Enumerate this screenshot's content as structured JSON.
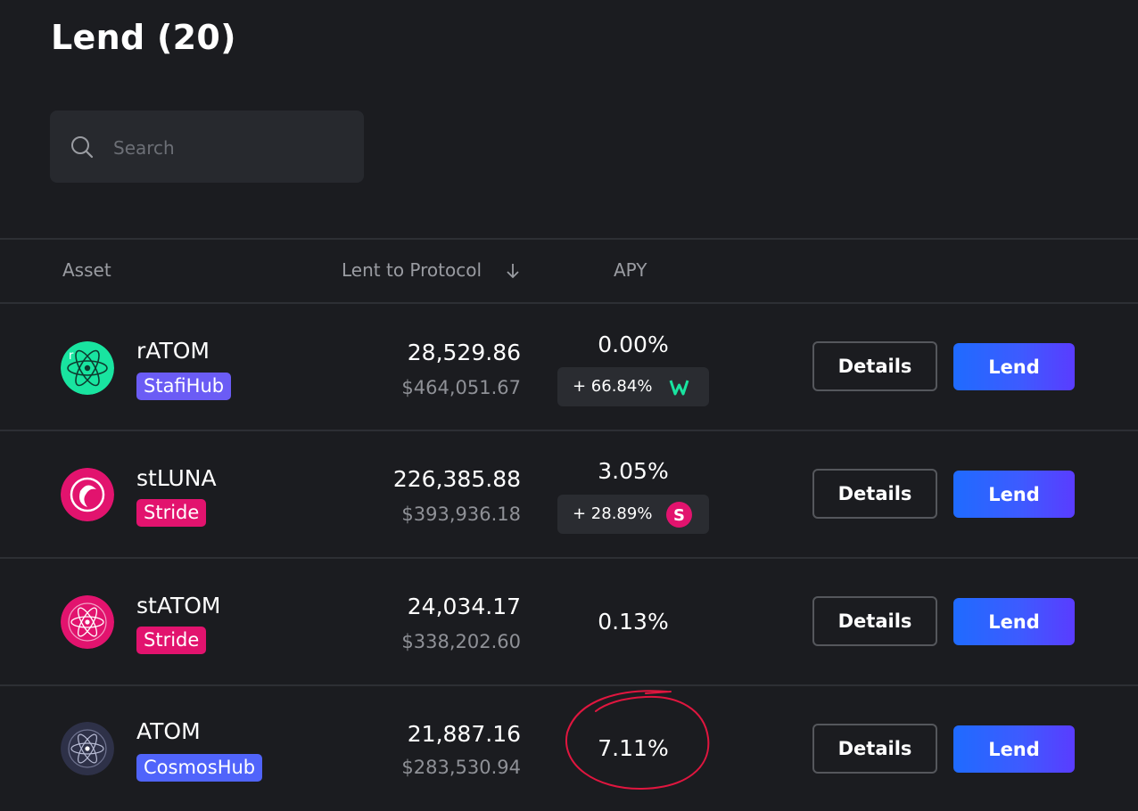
{
  "page": {
    "title": "Lend (20)"
  },
  "search": {
    "placeholder": "Search",
    "value": ""
  },
  "table": {
    "headers": {
      "asset": "Asset",
      "lent": "Lent to Protocol",
      "apy": "APY"
    },
    "sort_icon": "arrow-down-icon",
    "rows": [
      {
        "name": "rATOM",
        "source": "StafiHub",
        "source_color": "#6b5cf5",
        "icon": "ratom-token-icon",
        "icon_color": "#19e4a0",
        "amount": "28,529.86",
        "usd": "$464,051.67",
        "apy": "0.00%",
        "bonus": "+ 66.84%",
        "bonus_icon": "stafihub-w-icon",
        "details": "Details",
        "lend": "Lend"
      },
      {
        "name": "stLUNA",
        "source": "Stride",
        "source_color": "#e2136e",
        "icon": "stluna-token-icon",
        "icon_color": "#e2136e",
        "amount": "226,385.88",
        "usd": "$393,936.18",
        "apy": "3.05%",
        "bonus": "+ 28.89%",
        "bonus_icon": "stride-s-icon",
        "details": "Details",
        "lend": "Lend"
      },
      {
        "name": "stATOM",
        "source": "Stride",
        "source_color": "#e2136e",
        "icon": "statom-token-icon",
        "icon_color": "#e2136e",
        "amount": "24,034.17",
        "usd": "$338,202.60",
        "apy": "0.13%",
        "details": "Details",
        "lend": "Lend"
      },
      {
        "name": "ATOM",
        "source": "CosmosHub",
        "source_color": "#5064fb",
        "icon": "atom-token-icon",
        "icon_color": "#2e3148",
        "amount": "21,887.16",
        "usd": "$283,530.94",
        "apy": "7.11%",
        "details": "Details",
        "lend": "Lend"
      }
    ]
  },
  "annotation": {
    "type": "hand-drawn-circle",
    "color": "#e0163f"
  }
}
